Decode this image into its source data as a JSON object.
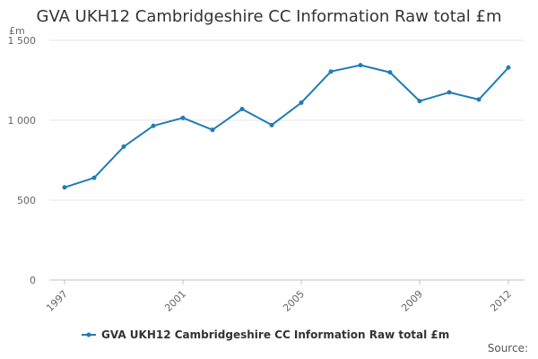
{
  "chart_data": {
    "type": "line",
    "title": "GVA UKH12 Cambridgeshire CC Information Raw total £m",
    "unit_label": "£m",
    "xlabel": "",
    "ylabel": "",
    "xlim": [
      1997,
      2012
    ],
    "ylim": [
      0,
      1500
    ],
    "y_ticks": [
      0,
      500,
      1000,
      1500
    ],
    "y_tick_labels": [
      "0",
      "500",
      "1 000",
      "1 500"
    ],
    "x_ticks": [
      1997,
      2001,
      2005,
      2009,
      2012
    ],
    "x_tick_labels": [
      "1997",
      "2001",
      "2005",
      "2009",
      "2012"
    ],
    "grid": "horizontal",
    "legend_position": "bottom",
    "series": [
      {
        "name": "GVA UKH12 Cambridgeshire CC Information Raw total £m",
        "color": "#1f7cb5",
        "x": [
          1997,
          1998,
          1999,
          2000,
          2001,
          2002,
          2003,
          2004,
          2005,
          2006,
          2007,
          2008,
          2009,
          2010,
          2011,
          2012
        ],
        "y": [
          580,
          640,
          835,
          965,
          1015,
          940,
          1070,
          970,
          1110,
          1305,
          1345,
          1300,
          1120,
          1175,
          1130,
          1330
        ]
      }
    ]
  },
  "source_label": "Source:"
}
